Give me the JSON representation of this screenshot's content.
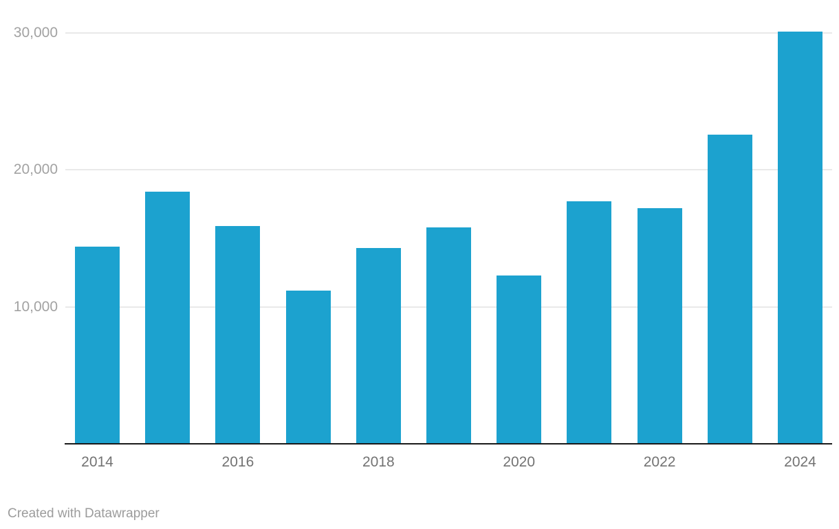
{
  "chart_data": {
    "type": "bar",
    "categories": [
      "2014",
      "2015",
      "2016",
      "2017",
      "2018",
      "2019",
      "2020",
      "2021",
      "2022",
      "2023",
      "2024"
    ],
    "values": [
      14400,
      18400,
      15900,
      11200,
      14300,
      15800,
      12300,
      17700,
      17200,
      22600,
      30100
    ],
    "title": "",
    "xlabel": "",
    "ylabel": "",
    "ylim": [
      0,
      30100
    ],
    "y_ticks": [
      {
        "value": 10000,
        "label": "10,000"
      },
      {
        "value": 20000,
        "label": "20,000"
      },
      {
        "value": 30000,
        "label": "30,000"
      }
    ],
    "x_tick_labels": [
      "2014",
      "2016",
      "2018",
      "2020",
      "2022",
      "2024"
    ],
    "grid": "horizontal",
    "legend": "none"
  },
  "colors": {
    "bar": "#1ca2cf",
    "gridline": "#e9e9e9",
    "axis_line": "#191919",
    "y_label": "#a2a2a2",
    "x_label": "#737373",
    "footer": "#9c9c9c"
  },
  "footer": {
    "credit": "Created with Datawrapper"
  }
}
